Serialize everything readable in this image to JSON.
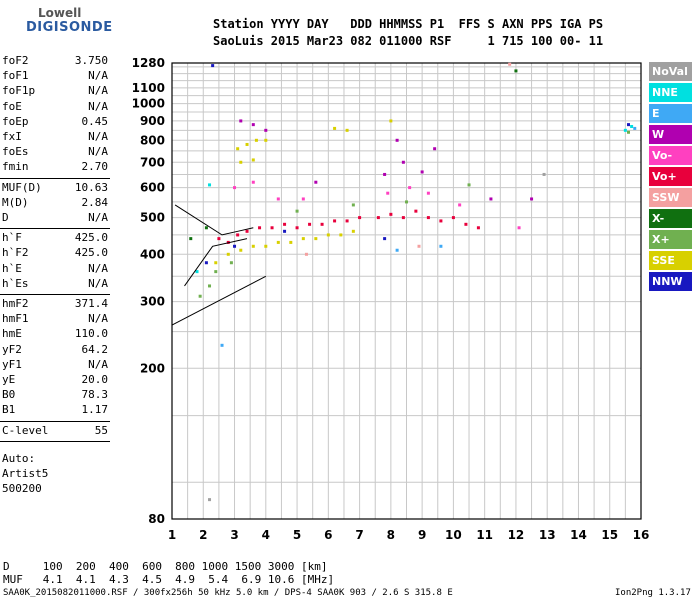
{
  "logo": {
    "line1": "Lowell",
    "line2": "DIGISONDE"
  },
  "header": {
    "labels_line": "Station YYYY DAY   DDD HHMMSS P1  FFS S AXN PPS IGA PS",
    "values_line": "SaoLuis 2015 Mar23 082 011000 RSF     1 715 100 00- 11"
  },
  "params": [
    {
      "group": [
        {
          "label": "foF2",
          "value": "3.750"
        },
        {
          "label": "foF1",
          "value": "N/A"
        },
        {
          "label": "foF1p",
          "value": "N/A"
        },
        {
          "label": "foE",
          "value": "N/A"
        },
        {
          "label": "foEp",
          "value": "0.45"
        },
        {
          "label": "fxI",
          "value": "N/A"
        },
        {
          "label": "foEs",
          "value": "N/A"
        },
        {
          "label": "fmin",
          "value": "2.70"
        }
      ]
    },
    {
      "group": [
        {
          "label": "MUF(D)",
          "value": "10.63"
        },
        {
          "label": "M(D)",
          "value": "2.84"
        },
        {
          "label": "D",
          "value": "N/A"
        }
      ]
    },
    {
      "group": [
        {
          "label": "h`F",
          "value": "425.0"
        },
        {
          "label": "h`F2",
          "value": "425.0"
        },
        {
          "label": "h`E",
          "value": "N/A"
        },
        {
          "label": "h`Es",
          "value": "N/A"
        }
      ]
    },
    {
      "group": [
        {
          "label": "hmF2",
          "value": "371.4"
        },
        {
          "label": "hmF1",
          "value": "N/A"
        },
        {
          "label": "hmE",
          "value": "110.0"
        },
        {
          "label": "yF2",
          "value": "64.2"
        },
        {
          "label": "yF1",
          "value": "N/A"
        },
        {
          "label": "yE",
          "value": "20.0"
        },
        {
          "label": "B0",
          "value": "78.3"
        },
        {
          "label": "B1",
          "value": "1.17"
        }
      ]
    },
    {
      "group": [
        {
          "label": "C-level",
          "value": "55"
        }
      ]
    }
  ],
  "auto": [
    "Auto:",
    "Artist5",
    "500200"
  ],
  "legend": [
    {
      "label": "NoVal",
      "color": "#a0a0a0"
    },
    {
      "label": "NNE",
      "color": "#00e0e0"
    },
    {
      "label": "E",
      "color": "#3fa9f5"
    },
    {
      "label": "W",
      "color": "#b000b0"
    },
    {
      "label": "Vo-",
      "color": "#ff40c0"
    },
    {
      "label": "Vo+",
      "color": "#e8003c"
    },
    {
      "label": "SSW",
      "color": "#f4a0a0"
    },
    {
      "label": "X-",
      "color": "#107010"
    },
    {
      "label": "X+",
      "color": "#70b050"
    },
    {
      "label": "SSE",
      "color": "#d8d000"
    },
    {
      "label": "NNW",
      "color": "#1818c0"
    }
  ],
  "chart_data": {
    "type": "scatter",
    "title": "",
    "xlabel": "",
    "ylabel": "",
    "xlim": [
      1,
      16
    ],
    "ylim": [
      80,
      1280
    ],
    "y_scale": "log",
    "x_ticks": [
      1,
      2,
      3,
      4,
      5,
      6,
      7,
      8,
      9,
      10,
      11,
      12,
      13,
      14,
      15,
      16
    ],
    "y_ticks": [
      80,
      200,
      300,
      400,
      500,
      600,
      700,
      800,
      900,
      1000,
      1100,
      1280
    ],
    "grid": true,
    "legend_position": "right",
    "series": [
      {
        "name": "Vo+",
        "color": "#e8003c",
        "points": [
          [
            2.5,
            440
          ],
          [
            2.8,
            430
          ],
          [
            3.1,
            450
          ],
          [
            3.4,
            460
          ],
          [
            3.8,
            470
          ],
          [
            4.2,
            470
          ],
          [
            4.6,
            480
          ],
          [
            5.0,
            470
          ],
          [
            5.4,
            480
          ],
          [
            5.8,
            480
          ],
          [
            6.2,
            490
          ],
          [
            6.6,
            490
          ],
          [
            7.0,
            500
          ],
          [
            7.6,
            500
          ],
          [
            8.0,
            510
          ],
          [
            8.4,
            500
          ],
          [
            8.8,
            520
          ],
          [
            9.2,
            500
          ],
          [
            9.6,
            490
          ],
          [
            10.0,
            500
          ],
          [
            10.4,
            480
          ],
          [
            10.8,
            470
          ]
        ]
      },
      {
        "name": "SSE",
        "color": "#d8d000",
        "points": [
          [
            2.4,
            380
          ],
          [
            2.8,
            400
          ],
          [
            3.2,
            410
          ],
          [
            3.6,
            420
          ],
          [
            4.0,
            420
          ],
          [
            4.4,
            430
          ],
          [
            4.8,
            430
          ],
          [
            5.2,
            440
          ],
          [
            5.6,
            440
          ],
          [
            6.0,
            450
          ],
          [
            6.4,
            450
          ],
          [
            6.8,
            460
          ],
          [
            3.1,
            760
          ],
          [
            3.4,
            780
          ],
          [
            3.7,
            800
          ],
          [
            4.0,
            800
          ],
          [
            6.2,
            860
          ],
          [
            6.6,
            850
          ],
          [
            8.0,
            900
          ],
          [
            3.2,
            700
          ],
          [
            3.6,
            710
          ]
        ]
      },
      {
        "name": "W",
        "color": "#b000b0",
        "points": [
          [
            3.2,
            900
          ],
          [
            3.6,
            880
          ],
          [
            4.0,
            850
          ],
          [
            5.6,
            620
          ],
          [
            7.8,
            650
          ],
          [
            8.4,
            700
          ],
          [
            9.0,
            660
          ],
          [
            8.2,
            800
          ],
          [
            9.4,
            760
          ],
          [
            11.2,
            560
          ],
          [
            12.5,
            560
          ]
        ]
      },
      {
        "name": "Vo-",
        "color": "#ff40c0",
        "points": [
          [
            3.0,
            600
          ],
          [
            3.6,
            620
          ],
          [
            4.4,
            560
          ],
          [
            5.2,
            560
          ],
          [
            7.9,
            580
          ],
          [
            8.6,
            600
          ],
          [
            9.2,
            580
          ],
          [
            10.2,
            540
          ],
          [
            12.1,
            470
          ]
        ]
      },
      {
        "name": "X+",
        "color": "#70b050",
        "points": [
          [
            1.9,
            310
          ],
          [
            2.2,
            330
          ],
          [
            2.4,
            360
          ],
          [
            2.9,
            380
          ],
          [
            5.0,
            520
          ],
          [
            6.8,
            540
          ],
          [
            8.5,
            550
          ],
          [
            10.5,
            610
          ],
          [
            15.6,
            840
          ]
        ]
      },
      {
        "name": "NNE",
        "color": "#00e0e0",
        "points": [
          [
            2.2,
            610
          ],
          [
            1.8,
            360
          ],
          [
            15.5,
            850
          ],
          [
            15.7,
            870
          ]
        ]
      },
      {
        "name": "E",
        "color": "#3fa9f5",
        "points": [
          [
            2.6,
            230
          ],
          [
            8.2,
            410
          ],
          [
            9.6,
            420
          ],
          [
            15.8,
            860
          ]
        ]
      },
      {
        "name": "NNW",
        "color": "#1818c0",
        "points": [
          [
            2.1,
            380
          ],
          [
            3.0,
            420
          ],
          [
            4.6,
            460
          ],
          [
            7.8,
            440
          ],
          [
            15.6,
            880
          ],
          [
            2.3,
            1260
          ]
        ]
      },
      {
        "name": "X-",
        "color": "#107010",
        "points": [
          [
            1.6,
            440
          ],
          [
            2.1,
            470
          ],
          [
            12.0,
            1220
          ]
        ]
      },
      {
        "name": "SSW",
        "color": "#f4a0a0",
        "points": [
          [
            11.8,
            1270
          ],
          [
            5.3,
            400
          ],
          [
            8.9,
            420
          ]
        ]
      },
      {
        "name": "NoVal",
        "color": "#a0a0a0",
        "points": [
          [
            2.2,
            90
          ],
          [
            12.9,
            650
          ]
        ]
      }
    ],
    "trace_lines": [
      {
        "points": [
          [
            1,
            260
          ],
          [
            4,
            350
          ]
        ]
      },
      {
        "points": [
          [
            1.1,
            540
          ],
          [
            2.6,
            450
          ],
          [
            3.1,
            460
          ],
          [
            3.6,
            470
          ]
        ]
      },
      {
        "points": [
          [
            1.4,
            330
          ],
          [
            2.3,
            420
          ],
          [
            3.4,
            440
          ]
        ]
      }
    ]
  },
  "footer": {
    "d_line": "D     100  200  400  600  800 1000 1500 3000 [km]",
    "muf_line": "MUF   4.1  4.1  4.3  4.5  4.9  5.4  6.9 10.6 [MHz]",
    "file_line": "SAA0K_2015082011000.RSF / 300fx256h 50 kHz 5.0 km / DPS-4 SAA0K 903 / 2.6 S 315.8 E",
    "version": "Ion2Png 1.3.17"
  }
}
